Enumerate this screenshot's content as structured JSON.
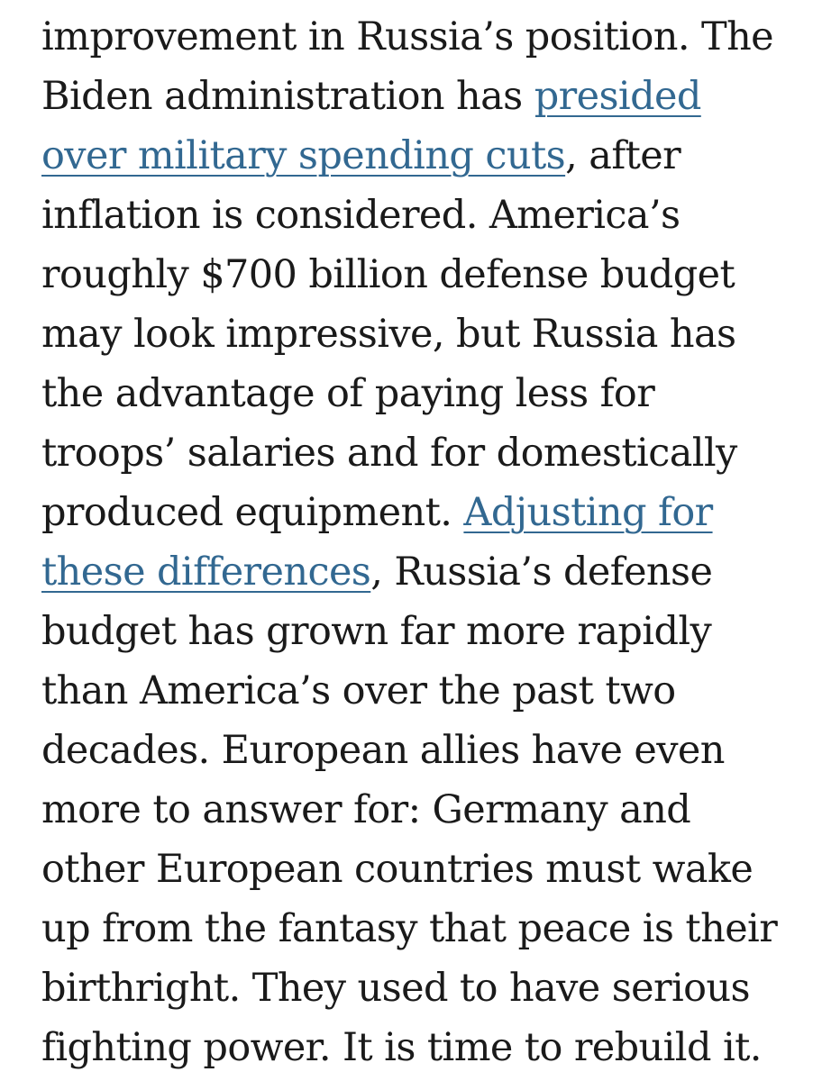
{
  "article": {
    "lines": [
      {
        "text": "improvement in Russia’s position. The"
      },
      {
        "text": "Biden administration has ",
        "link": "presided"
      },
      {
        "link": "over military spending cuts",
        "text_after": ", after"
      },
      {
        "text": "inflation is considered. America’s"
      },
      {
        "text": "roughly $700 billion defense budget"
      },
      {
        "text": "may look impressive, but Russia has"
      },
      {
        "text": "the advantage of paying less for"
      },
      {
        "text": "troops’ salaries and for domestically"
      },
      {
        "text": "produced equipment. ",
        "link": "Adjusting for"
      },
      {
        "link": "these differences",
        "text_after": ", Russia’s defense"
      },
      {
        "text": "budget has grown far more rapidly"
      },
      {
        "text": "than America’s over the past two"
      },
      {
        "text": "decades. European allies have even"
      },
      {
        "text": "more to answer for: Germany and"
      },
      {
        "text": "other European countries must wake"
      },
      {
        "text": "up from the fantasy that peace is their"
      },
      {
        "text": "birthright. They used to have serious"
      },
      {
        "text": "fighting power. It is time to rebuild it."
      }
    ]
  },
  "colors": {
    "text": "#1a1a1a",
    "link": "#326891",
    "background": "#ffffff"
  }
}
